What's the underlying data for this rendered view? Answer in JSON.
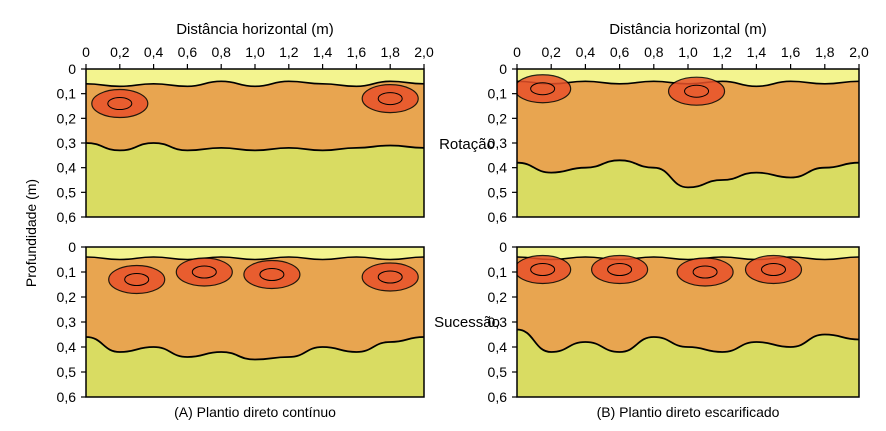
{
  "figure": {
    "ylabel": "Profundidade (m)",
    "colors": {
      "low": "#d9dc62",
      "mid": "#e8a550",
      "high": "#e8512a",
      "surface": "#f3f48f",
      "contour": "#000000"
    }
  },
  "chart_data": [
    {
      "type": "heatmap",
      "column": "(A) Plantio direto contínuo",
      "row": "Rotação",
      "xlabel": "Distância horizontal (m)",
      "x_ticks": [
        "0",
        "0,2",
        "0,4",
        "0,6",
        "0,8",
        "1,0",
        "1,2",
        "1,4",
        "1,6",
        "1,8",
        "2,0"
      ],
      "y_ticks": [
        "0",
        "0,1",
        "0,2",
        "0,3",
        "0,4",
        "0,5",
        "0,6"
      ],
      "xlim": [
        0,
        2.0
      ],
      "ylim": [
        0,
        0.6
      ],
      "boundary_upper": [
        0.06,
        0.07,
        0.06,
        0.07,
        0.05,
        0.07,
        0.05,
        0.06,
        0.07,
        0.05,
        0.06
      ],
      "boundary_lower": [
        0.3,
        0.33,
        0.3,
        0.33,
        0.32,
        0.33,
        0.32,
        0.33,
        0.32,
        0.31,
        0.32
      ],
      "hot_spots": [
        {
          "x": 0.2,
          "y": 0.14,
          "level": "high"
        },
        {
          "x": 1.8,
          "y": 0.12,
          "level": "high"
        }
      ]
    },
    {
      "type": "heatmap",
      "column": "(B) Plantio direto escarificado",
      "row": "Rotação",
      "xlabel": "Distância horizontal (m)",
      "x_ticks": [
        "0",
        "0,2",
        "0,4",
        "0,6",
        "0,8",
        "1,0",
        "1,2",
        "1,4",
        "1,6",
        "1,8",
        "2,0"
      ],
      "y_ticks": [
        "0",
        "0,1",
        "0,2",
        "0,3",
        "0,4",
        "0,5",
        "0,6"
      ],
      "xlim": [
        0,
        2.0
      ],
      "ylim": [
        0,
        0.6
      ],
      "boundary_upper": [
        0.05,
        0.06,
        0.05,
        0.06,
        0.05,
        0.06,
        0.05,
        0.07,
        0.05,
        0.06,
        0.05
      ],
      "boundary_lower": [
        0.38,
        0.42,
        0.4,
        0.37,
        0.4,
        0.48,
        0.45,
        0.42,
        0.44,
        0.4,
        0.38
      ],
      "hot_spots": [
        {
          "x": 0.15,
          "y": 0.08,
          "level": "high"
        },
        {
          "x": 1.05,
          "y": 0.09,
          "level": "high"
        }
      ]
    },
    {
      "type": "heatmap",
      "column": "(A) Plantio direto contínuo",
      "row": "Sucessão",
      "xlabel": "",
      "x_ticks": [],
      "y_ticks": [
        "0",
        "0,1",
        "0,2",
        "0,3",
        "0,4",
        "0,5",
        "0,6"
      ],
      "xlim": [
        0,
        2.0
      ],
      "ylim": [
        0,
        0.6
      ],
      "boundary_upper": [
        0.04,
        0.05,
        0.04,
        0.05,
        0.04,
        0.05,
        0.04,
        0.05,
        0.04,
        0.05,
        0.04
      ],
      "boundary_lower": [
        0.36,
        0.42,
        0.4,
        0.44,
        0.42,
        0.45,
        0.44,
        0.4,
        0.42,
        0.38,
        0.36
      ],
      "hot_spots": [
        {
          "x": 0.3,
          "y": 0.13,
          "level": "high"
        },
        {
          "x": 0.7,
          "y": 0.1,
          "level": "high"
        },
        {
          "x": 1.1,
          "y": 0.11,
          "level": "high"
        },
        {
          "x": 1.8,
          "y": 0.12,
          "level": "high"
        }
      ]
    },
    {
      "type": "heatmap",
      "column": "(B) Plantio direto escarificado",
      "row": "Sucessão",
      "xlabel": "",
      "x_ticks": [],
      "y_ticks": [
        "0",
        "0,1",
        "0,2",
        "0,3",
        "0,4",
        "0,5",
        "0,6"
      ],
      "xlim": [
        0,
        2.0
      ],
      "ylim": [
        0,
        0.6
      ],
      "boundary_upper": [
        0.04,
        0.05,
        0.04,
        0.05,
        0.04,
        0.05,
        0.04,
        0.05,
        0.04,
        0.05,
        0.04
      ],
      "boundary_lower": [
        0.33,
        0.42,
        0.38,
        0.42,
        0.36,
        0.4,
        0.42,
        0.38,
        0.4,
        0.35,
        0.37
      ],
      "hot_spots": [
        {
          "x": 0.15,
          "y": 0.09,
          "level": "high"
        },
        {
          "x": 0.6,
          "y": 0.09,
          "level": "high"
        },
        {
          "x": 1.1,
          "y": 0.1,
          "level": "high"
        },
        {
          "x": 1.5,
          "y": 0.09,
          "level": "high"
        }
      ]
    }
  ]
}
